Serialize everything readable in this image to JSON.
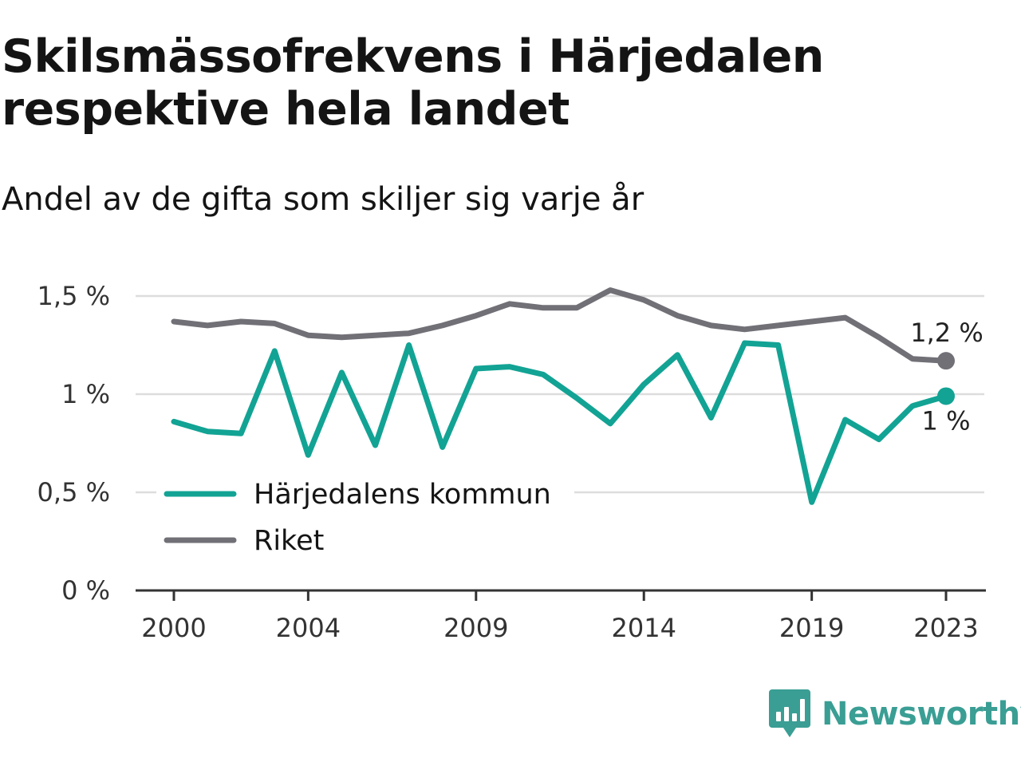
{
  "title": "Skilsmässofrekvens i Härjedalen respektive hela landet",
  "subtitle": "Andel av de gifta som skiljer sig varje år",
  "brand": {
    "name": "Newsworthy",
    "icon": "newsworthy-logo-icon"
  },
  "colors": {
    "harjedalen": "#12a394",
    "riket": "#727077",
    "grid": "#dddddd",
    "axis": "#333333"
  },
  "chart_data": {
    "type": "line",
    "title": "Skilsmässofrekvens i Härjedalen respektive hela landet",
    "subtitle": "Andel av de gifta som skiljer sig varje år",
    "xlabel": "",
    "ylabel": "",
    "x": [
      2000,
      2001,
      2002,
      2003,
      2004,
      2005,
      2006,
      2007,
      2008,
      2009,
      2010,
      2011,
      2012,
      2013,
      2014,
      2015,
      2016,
      2017,
      2018,
      2019,
      2020,
      2021,
      2022,
      2023
    ],
    "x_ticks": [
      2000,
      2004,
      2009,
      2014,
      2019,
      2023
    ],
    "y_ticks": [
      0,
      0.5,
      1,
      1.5
    ],
    "y_tick_labels": [
      "0 %",
      "0,5 %",
      "1 %",
      "1,5 %"
    ],
    "ylim": [
      0,
      1.55
    ],
    "xlim": [
      1999,
      2024
    ],
    "grid": "horizontal",
    "legend_position": "bottom-left",
    "series": [
      {
        "name": "Härjedalens kommun",
        "color": "#12a394",
        "values": [
          0.86,
          0.81,
          0.8,
          1.22,
          0.69,
          1.11,
          0.74,
          1.25,
          0.73,
          1.13,
          1.14,
          1.1,
          0.98,
          0.85,
          1.05,
          1.2,
          0.88,
          1.26,
          1.25,
          0.45,
          0.87,
          0.77,
          0.94,
          0.99
        ],
        "end_label": "1 %"
      },
      {
        "name": "Riket",
        "color": "#727077",
        "values": [
          1.37,
          1.35,
          1.37,
          1.36,
          1.3,
          1.29,
          1.3,
          1.31,
          1.35,
          1.4,
          1.46,
          1.44,
          1.44,
          1.53,
          1.48,
          1.4,
          1.35,
          1.33,
          1.35,
          1.37,
          1.39,
          1.29,
          1.18,
          1.17
        ],
        "end_label": "1,2 %"
      }
    ]
  }
}
